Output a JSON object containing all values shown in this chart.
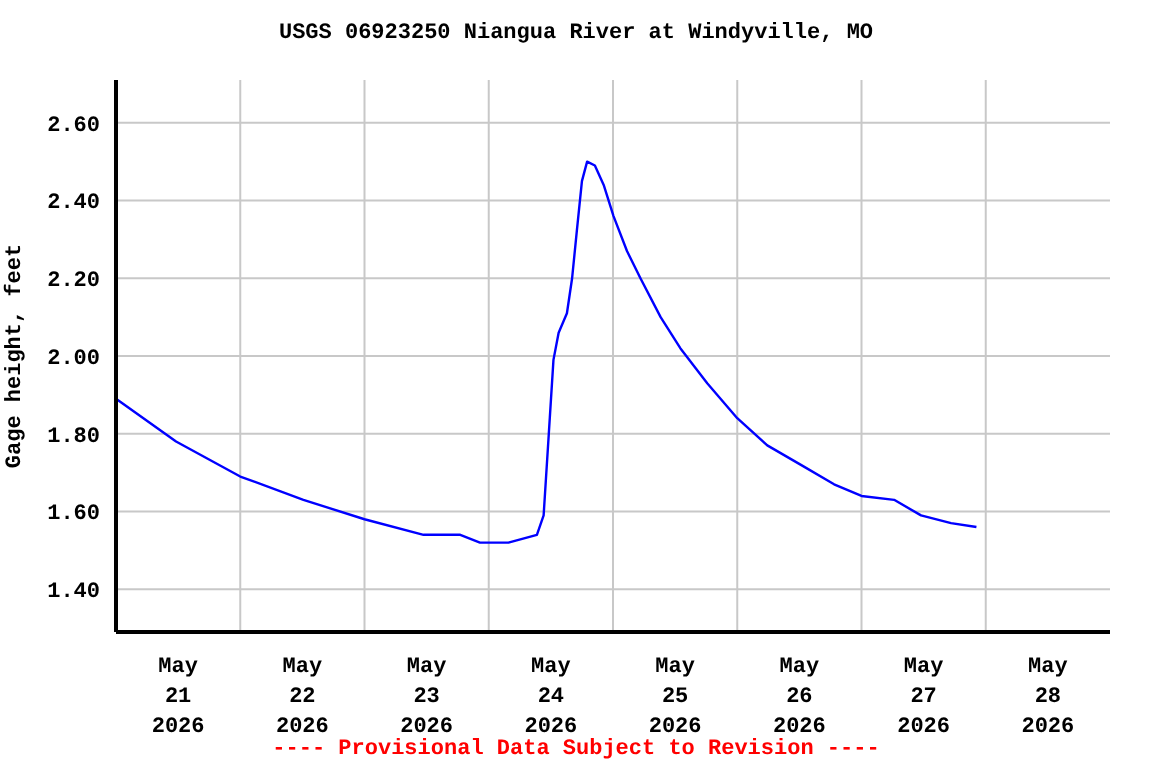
{
  "chart_data": {
    "type": "line",
    "title": "USGS 06923250 Niangua River at Windyville, MO",
    "ylabel": "Gage height, feet",
    "annotations": [
      "---- Provisional Data Subject to Revision ----"
    ],
    "x": [
      "2026-05-21T00:00",
      "2026-05-21T11:36",
      "2026-05-22T00:00",
      "2026-05-22T12:12",
      "2026-05-23T00:00",
      "2026-05-23T11:24",
      "2026-05-23T18:30",
      "2026-05-23T22:18",
      "2026-05-24T03:48",
      "2026-05-24T09:18",
      "2026-05-24T10:36",
      "2026-05-24T11:36",
      "2026-05-24T12:30",
      "2026-05-24T13:30",
      "2026-05-24T15:06",
      "2026-05-24T16:06",
      "2026-05-24T17:00",
      "2026-05-24T18:00",
      "2026-05-24T19:00",
      "2026-05-24T20:30",
      "2026-05-24T22:12",
      "2026-05-25T00:06",
      "2026-05-25T02:42",
      "2026-05-25T05:18",
      "2026-05-25T09:12",
      "2026-05-25T13:00",
      "2026-05-25T18:12",
      "2026-05-26T00:00",
      "2026-05-26T05:48",
      "2026-05-26T12:18",
      "2026-05-26T18:42",
      "2026-05-27T00:00",
      "2026-05-27T06:18",
      "2026-05-27T11:30",
      "2026-05-27T17:18",
      "2026-05-27T22:12"
    ],
    "series": [
      {
        "color": "#0000ff",
        "values": [
          1.89,
          1.78,
          1.69,
          1.63,
          1.58,
          1.54,
          1.54,
          1.52,
          1.52,
          1.54,
          1.59,
          1.8,
          1.99,
          2.06,
          2.11,
          2.2,
          2.32,
          2.45,
          2.5,
          2.49,
          2.44,
          2.36,
          2.27,
          2.2,
          2.1,
          2.02,
          1.93,
          1.84,
          1.77,
          1.72,
          1.67,
          1.64,
          1.63,
          1.59,
          1.57,
          1.56
        ]
      }
    ],
    "xlim": [
      "2026-05-21T00:00",
      "2026-05-29T00:00"
    ],
    "xticks": [
      {
        "value": "2026-05-21T12:00",
        "label": "May\n21\n2026"
      },
      {
        "value": "2026-05-22T00:00",
        "label": null
      },
      {
        "value": "2026-05-22T12:00",
        "label": "May\n22\n2026"
      },
      {
        "value": "2026-05-23T00:00",
        "label": null
      },
      {
        "value": "2026-05-23T12:00",
        "label": "May\n23\n2026"
      },
      {
        "value": "2026-05-24T00:00",
        "label": null
      },
      {
        "value": "2026-05-24T12:00",
        "label": "May\n24\n2026"
      },
      {
        "value": "2026-05-25T00:00",
        "label": null
      },
      {
        "value": "2026-05-25T12:00",
        "label": "May\n25\n2026"
      },
      {
        "value": "2026-05-26T00:00",
        "label": null
      },
      {
        "value": "2026-05-26T12:00",
        "label": "May\n26\n2026"
      },
      {
        "value": "2026-05-27T00:00",
        "label": null
      },
      {
        "value": "2026-05-27T12:00",
        "label": "May\n27\n2026"
      },
      {
        "value": "2026-05-28T00:00",
        "label": null
      },
      {
        "value": "2026-05-28T12:00",
        "label": "May\n28\n2026"
      }
    ],
    "ylim": [
      1.29,
      2.71
    ],
    "yticks": [
      {
        "value": 1.4,
        "label": "1.40"
      },
      {
        "value": 1.6,
        "label": "1.60"
      },
      {
        "value": 1.8,
        "label": "1.80"
      },
      {
        "value": 2.0,
        "label": "2.00"
      },
      {
        "value": 2.2,
        "label": "2.20"
      },
      {
        "value": 2.4,
        "label": "2.40"
      },
      {
        "value": 2.6,
        "label": "2.60"
      }
    ],
    "grid": true,
    "marker": "none",
    "line_style": "solid"
  }
}
